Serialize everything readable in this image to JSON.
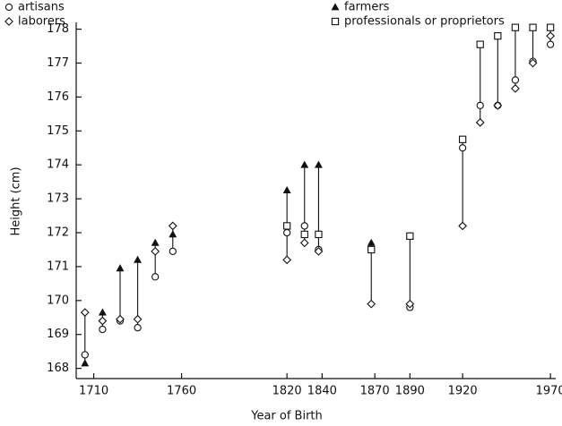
{
  "chart_data": {
    "type": "scatter",
    "xlabel": "Year of Birth",
    "ylabel": "Height (cm)",
    "x": [
      1705,
      1715,
      1725,
      1735,
      1745,
      1755,
      1820,
      1830,
      1838,
      1868,
      1890,
      1920,
      1930,
      1940,
      1950,
      1960,
      1970
    ],
    "series": [
      {
        "name": "artisans",
        "marker": "circle",
        "color": "#111111",
        "values": [
          168.4,
          169.15,
          169.4,
          169.2,
          170.7,
          171.45,
          172.0,
          172.2,
          171.5,
          171.5,
          169.8,
          174.5,
          175.75,
          175.75,
          176.5,
          177.05,
          177.55
        ]
      },
      {
        "name": "farmers",
        "marker": "triangle",
        "color": "#111111",
        "values": [
          168.15,
          169.65,
          170.95,
          171.2,
          171.7,
          171.95,
          173.25,
          174.0,
          174.0,
          171.7,
          171.9,
          null,
          null,
          null,
          null,
          null,
          null
        ]
      },
      {
        "name": "laborers",
        "marker": "diamond",
        "color": "#111111",
        "values": [
          169.65,
          169.4,
          169.45,
          169.45,
          171.45,
          172.2,
          171.2,
          171.7,
          171.45,
          169.9,
          169.9,
          172.2,
          175.25,
          175.75,
          176.25,
          177.0,
          177.8
        ]
      },
      {
        "name": "professionals or proprietors",
        "marker": "square",
        "color": "#111111",
        "values": [
          null,
          null,
          null,
          null,
          null,
          null,
          172.2,
          171.95,
          171.95,
          171.5,
          171.9,
          174.75,
          177.55,
          177.8,
          178.05,
          178.05,
          178.05
        ]
      }
    ],
    "xlim": [
      1700,
      1973
    ],
    "xticks": [
      1710,
      1760,
      1820,
      1840,
      1870,
      1890,
      1920,
      1970
    ],
    "ylim": [
      167.7,
      178.2
    ],
    "yticks": [
      168,
      169,
      170,
      171,
      172,
      173,
      174,
      175,
      176,
      177,
      178
    ],
    "grid": false
  }
}
